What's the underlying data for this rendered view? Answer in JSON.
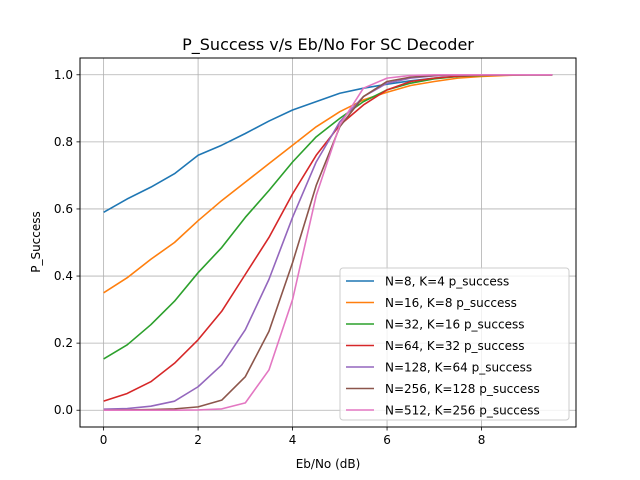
{
  "chart_data": {
    "type": "line",
    "title": "P_Success v/s Eb/No For SC Decoder",
    "xlabel": "Eb/No (dB)",
    "ylabel": "P_Success",
    "xlim": [
      -0.5,
      10.0
    ],
    "ylim": [
      -0.05,
      1.05
    ],
    "xticks": [
      0,
      2,
      4,
      6,
      8
    ],
    "xtick_labels": [
      "0",
      "2",
      "4",
      "6",
      "8"
    ],
    "yticks": [
      0.0,
      0.2,
      0.4,
      0.6,
      0.8,
      1.0
    ],
    "ytick_labels": [
      "0.0",
      "0.2",
      "0.4",
      "0.6",
      "0.8",
      "1.0"
    ],
    "grid": true,
    "legend_position": "lower-right",
    "x": [
      0,
      0.5,
      1,
      1.5,
      2,
      2.5,
      3,
      3.5,
      4,
      4.5,
      5,
      5.5,
      6,
      6.5,
      7,
      7.5,
      8,
      8.5,
      9,
      9.5
    ],
    "series": [
      {
        "name": "N=8, K=4 p_success",
        "color": "#1f77b4",
        "values": [
          0.59,
          0.63,
          0.665,
          0.705,
          0.76,
          0.79,
          0.825,
          0.862,
          0.895,
          0.92,
          0.945,
          0.96,
          0.972,
          0.982,
          0.99,
          0.995,
          0.998,
          0.999,
          1.0,
          1.0
        ]
      },
      {
        "name": "N=16, K=8 p_success",
        "color": "#ff7f0e",
        "values": [
          0.35,
          0.395,
          0.45,
          0.5,
          0.565,
          0.625,
          0.68,
          0.735,
          0.79,
          0.845,
          0.89,
          0.925,
          0.948,
          0.968,
          0.98,
          0.99,
          0.995,
          0.998,
          1.0,
          1.0
        ]
      },
      {
        "name": "N=32, K=16 p_success",
        "color": "#2ca02c",
        "values": [
          0.153,
          0.195,
          0.255,
          0.325,
          0.41,
          0.485,
          0.575,
          0.655,
          0.74,
          0.815,
          0.87,
          0.92,
          0.955,
          0.975,
          0.988,
          0.995,
          0.998,
          1.0,
          1.0,
          1.0
        ]
      },
      {
        "name": "N=64, K=32 p_success",
        "color": "#d62728",
        "values": [
          0.027,
          0.05,
          0.085,
          0.14,
          0.21,
          0.295,
          0.405,
          0.515,
          0.645,
          0.76,
          0.85,
          0.91,
          0.955,
          0.98,
          0.99,
          0.996,
          0.999,
          1.0,
          1.0,
          1.0
        ]
      },
      {
        "name": "N=128, K=64 p_success",
        "color": "#9467bd",
        "values": [
          0.003,
          0.005,
          0.012,
          0.027,
          0.07,
          0.135,
          0.24,
          0.39,
          0.575,
          0.74,
          0.86,
          0.935,
          0.975,
          0.99,
          0.997,
          0.999,
          1.0,
          1.0,
          1.0,
          1.0
        ]
      },
      {
        "name": "N=256, K=128 p_success",
        "color": "#8c564b",
        "values": [
          0.0,
          0.001,
          0.002,
          0.004,
          0.01,
          0.03,
          0.1,
          0.235,
          0.44,
          0.67,
          0.845,
          0.935,
          0.98,
          0.993,
          0.998,
          1.0,
          1.0,
          1.0,
          1.0,
          1.0
        ]
      },
      {
        "name": "N=512, K=256 p_success",
        "color": "#e377c2",
        "values": [
          0.0,
          0.0,
          0.0,
          0.0,
          0.001,
          0.004,
          0.022,
          0.12,
          0.33,
          0.64,
          0.85,
          0.96,
          0.99,
          0.998,
          1.0,
          1.0,
          1.0,
          1.0,
          1.0,
          1.0
        ]
      }
    ]
  }
}
